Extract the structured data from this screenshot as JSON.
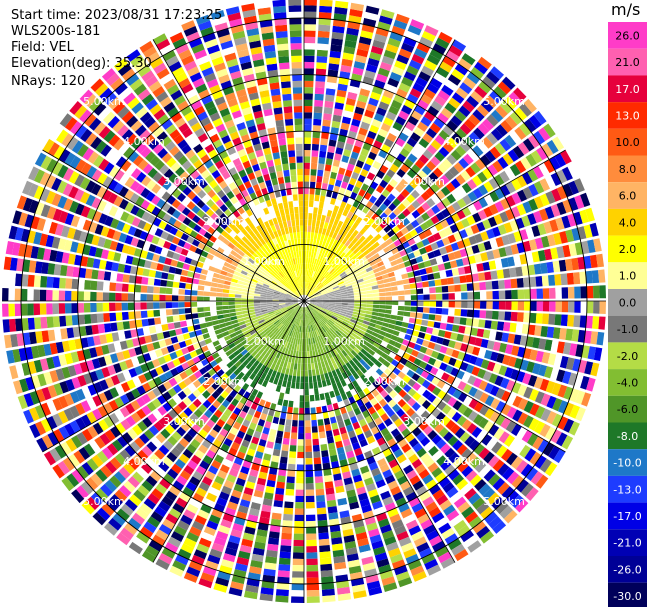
{
  "info": {
    "start_time": "Start time: 2023/08/31 17:23:25",
    "instrument": "WLS200s-181",
    "field": "Field: VEL",
    "elevation": "Elevation(deg): 35.30",
    "nrays": "NRays: 120"
  },
  "colorbar": {
    "unit": "m/s",
    "levels": [
      "26.0",
      "21.0",
      "17.0",
      "13.0",
      "10.0",
      "8.0",
      "6.0",
      "4.0",
      "2.0",
      "1.0",
      "0.0",
      "-1.0",
      "-2.0",
      "-4.0",
      "-6.0",
      "-8.0",
      "-10.0",
      "-13.0",
      "-17.0",
      "-21.0",
      "-26.0",
      "-30.0"
    ],
    "colors": [
      "#ff3cc8",
      "#ff60b0",
      "#e6003c",
      "#ff2a00",
      "#ff5a14",
      "#ff8c3c",
      "#ffb464",
      "#ffd200",
      "#ffff00",
      "#ffff96",
      "#a0a0a0",
      "#787878",
      "#b4dc46",
      "#82be32",
      "#509628",
      "#1e7828",
      "#1e78c8",
      "#1e3cff",
      "#0000e6",
      "#0000b4",
      "#000096",
      "#00005a"
    ]
  },
  "range_labels": [
    "1.00km",
    "2.00km",
    "3.00km",
    "4.00km",
    "5.00km"
  ],
  "ring_values": [
    1,
    2,
    3,
    4,
    5
  ]
}
